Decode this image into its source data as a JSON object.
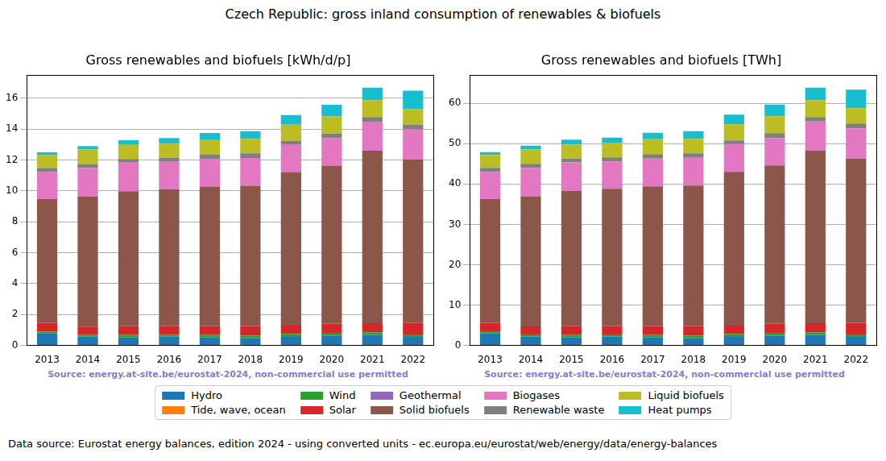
{
  "title": "Czech Republic: gross inland consumption of renewables & biofuels",
  "footer": "Data source: Eurostat energy balances, edition 2024 - using converted units - ec.europa.eu/eurostat/web/energy/data/energy-balances",
  "chart_data": [
    {
      "type": "bar",
      "title": "Gross renewables and biofuels [kWh/d/p]",
      "annotations": [
        "Source: energy.at-site.be/eurostat-2024, non-commercial use permitted"
      ],
      "categories": [
        "2013",
        "2014",
        "2015",
        "2016",
        "2017",
        "2018",
        "2019",
        "2020",
        "2021",
        "2022"
      ],
      "series": [
        {
          "name": "Hydro",
          "color": "#1f77b4",
          "values": [
            0.78,
            0.57,
            0.52,
            0.57,
            0.52,
            0.47,
            0.55,
            0.63,
            0.68,
            0.55
          ]
        },
        {
          "name": "Tide, wave, ocean",
          "color": "#ff7f0e",
          "values": [
            0,
            0,
            0,
            0,
            0,
            0,
            0,
            0,
            0,
            0
          ]
        },
        {
          "name": "Wind",
          "color": "#2ca02c",
          "values": [
            0.13,
            0.13,
            0.16,
            0.13,
            0.16,
            0.16,
            0.18,
            0.18,
            0.16,
            0.16
          ]
        },
        {
          "name": "Solar",
          "color": "#d62728",
          "values": [
            0.55,
            0.52,
            0.57,
            0.55,
            0.57,
            0.63,
            0.6,
            0.6,
            0.6,
            0.75
          ]
        },
        {
          "name": "Geothermal",
          "color": "#9467bd",
          "values": [
            0,
            0,
            0,
            0,
            0,
            0,
            0,
            0,
            0,
            0
          ]
        },
        {
          "name": "Solid biofuels",
          "color": "#8c564b",
          "values": [
            8.01,
            8.43,
            8.74,
            8.87,
            9.03,
            9.08,
            9.89,
            10.23,
            11.17,
            10.58
          ]
        },
        {
          "name": "Biogases",
          "color": "#e377c2",
          "values": [
            1.75,
            1.83,
            1.85,
            1.77,
            1.8,
            1.8,
            1.8,
            1.77,
            1.88,
            1.95
          ]
        },
        {
          "name": "Renewable waste",
          "color": "#7f7f7f",
          "values": [
            0.26,
            0.26,
            0.23,
            0.26,
            0.29,
            0.29,
            0.23,
            0.31,
            0.29,
            0.31
          ]
        },
        {
          "name": "Liquid biofuels",
          "color": "#bcbd22",
          "values": [
            0.84,
            0.94,
            0.91,
            0.91,
            0.97,
            0.94,
            1.04,
            1.1,
            1.1,
            0.99
          ]
        },
        {
          "name": "Heat pumps",
          "color": "#17becf",
          "values": [
            0.18,
            0.23,
            0.31,
            0.37,
            0.42,
            0.5,
            0.63,
            0.76,
            0.81,
            1.2
          ]
        }
      ],
      "ylim": [
        0,
        17.5
      ],
      "yticks": [
        0,
        2,
        4,
        6,
        8,
        10,
        12,
        14,
        16
      ],
      "grid": "y",
      "stacked": true,
      "legend": "bottom"
    },
    {
      "type": "bar",
      "title": "Gross renewables and biofuels [TWh]",
      "annotations": [
        "Source: energy.at-site.be/eurostat-2024, non-commercial use permitted"
      ],
      "categories": [
        "2013",
        "2014",
        "2015",
        "2016",
        "2017",
        "2018",
        "2019",
        "2020",
        "2021",
        "2022"
      ],
      "series": [
        {
          "name": "Hydro",
          "color": "#1f77b4",
          "values": [
            3.0,
            2.2,
            2.0,
            2.2,
            2.0,
            1.8,
            2.1,
            2.4,
            2.6,
            2.1
          ]
        },
        {
          "name": "Tide, wave, ocean",
          "color": "#ff7f0e",
          "values": [
            0,
            0,
            0,
            0,
            0,
            0,
            0,
            0,
            0,
            0
          ]
        },
        {
          "name": "Wind",
          "color": "#2ca02c",
          "values": [
            0.5,
            0.5,
            0.6,
            0.5,
            0.6,
            0.6,
            0.7,
            0.7,
            0.6,
            0.6
          ]
        },
        {
          "name": "Solar",
          "color": "#d62728",
          "values": [
            2.1,
            2.0,
            2.2,
            2.1,
            2.2,
            2.4,
            2.3,
            2.3,
            2.3,
            2.9
          ]
        },
        {
          "name": "Geothermal",
          "color": "#9467bd",
          "values": [
            0,
            0,
            0,
            0,
            0,
            0,
            0,
            0,
            0,
            0
          ]
        },
        {
          "name": "Solid biofuels",
          "color": "#8c564b",
          "values": [
            30.7,
            32.3,
            33.5,
            34.0,
            34.6,
            34.8,
            37.9,
            39.2,
            42.8,
            40.7
          ]
        },
        {
          "name": "Biogases",
          "color": "#e377c2",
          "values": [
            6.7,
            7.0,
            7.1,
            6.8,
            6.9,
            6.9,
            6.9,
            6.8,
            7.2,
            7.5
          ]
        },
        {
          "name": "Renewable waste",
          "color": "#7f7f7f",
          "values": [
            1.0,
            1.0,
            0.9,
            1.0,
            1.1,
            1.1,
            0.9,
            1.2,
            1.1,
            1.2
          ]
        },
        {
          "name": "Liquid biofuels",
          "color": "#bcbd22",
          "values": [
            3.2,
            3.6,
            3.5,
            3.5,
            3.7,
            3.6,
            4.0,
            4.2,
            4.2,
            3.8
          ]
        },
        {
          "name": "Heat pumps",
          "color": "#17becf",
          "values": [
            0.7,
            0.9,
            1.2,
            1.4,
            1.6,
            1.9,
            2.4,
            2.9,
            3.1,
            4.6
          ]
        }
      ],
      "ylim": [
        0,
        67
      ],
      "yticks": [
        0,
        10,
        20,
        30,
        40,
        50,
        60
      ],
      "grid": "y",
      "stacked": true,
      "legend": "bottom"
    }
  ]
}
